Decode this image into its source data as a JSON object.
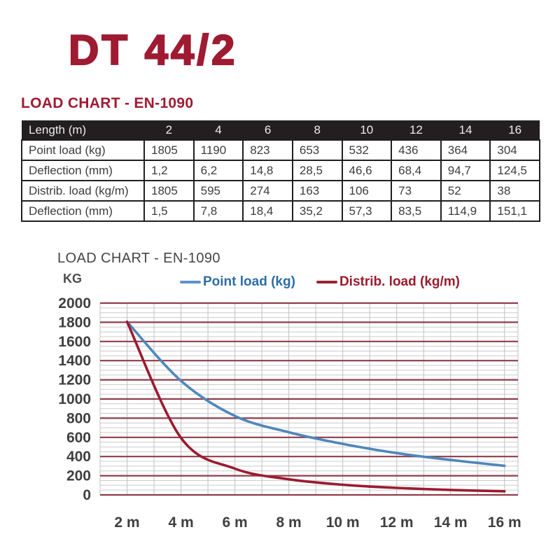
{
  "page": {
    "title": "DT 44/2",
    "section_heading": "LOAD CHART - EN-1090"
  },
  "table": {
    "header": {
      "label": "Length (m)",
      "values": [
        "2",
        "4",
        "6",
        "8",
        "10",
        "12",
        "14",
        "16"
      ]
    },
    "rows": [
      {
        "label": "Point load (kg)",
        "values": [
          "1805",
          "1190",
          "823",
          "653",
          "532",
          "436",
          "364",
          "304"
        ]
      },
      {
        "label": "Deflection (mm)",
        "values": [
          "1,2",
          "6,2",
          "14,8",
          "28,5",
          "46,6",
          "68,4",
          "94,7",
          "124,5"
        ]
      },
      {
        "label": "Distrib. load (kg/m)",
        "values": [
          "1805",
          "595",
          "274",
          "163",
          "106",
          "73",
          "52",
          "38"
        ]
      },
      {
        "label": "Deflection (mm)",
        "values": [
          "1,5",
          "7,8",
          "18,4",
          "35,2",
          "57,3",
          "83,5",
          "114,9",
          "151,1"
        ]
      }
    ]
  },
  "chart": {
    "heading": "LOAD CHART - EN-1090",
    "y_axis_label": "KG",
    "legend": [
      {
        "label": "Point load (kg)",
        "text_color": "#2E6DA4",
        "line_color": "#5B94CC"
      },
      {
        "label": "Distrib. load (kg/m)",
        "text_color": "#9B1B2D",
        "line_color": "#9B2335"
      }
    ]
  },
  "chart_data": {
    "type": "line",
    "title": "LOAD CHART - EN-1090",
    "ylabel": "KG",
    "xlabel": "",
    "x": [
      2,
      4,
      6,
      8,
      10,
      12,
      14,
      16
    ],
    "x_tick_labels": [
      "2 m",
      "4 m",
      "6 m",
      "8 m",
      "10 m",
      "12 m",
      "14 m",
      "16 m"
    ],
    "series": [
      {
        "name": "Point load (kg)",
        "color": "#4E87BB",
        "values": [
          1805,
          1190,
          823,
          653,
          532,
          436,
          364,
          304
        ]
      },
      {
        "name": "Distrib. load (kg/m)",
        "color": "#9B1B30",
        "values": [
          1805,
          595,
          274,
          163,
          106,
          73,
          52,
          38
        ]
      }
    ],
    "ylim": [
      0,
      2000
    ],
    "xlim": [
      1,
      16.5
    ],
    "y_ticks": [
      0,
      200,
      400,
      600,
      800,
      1000,
      1200,
      1400,
      1600,
      1800,
      2000
    ],
    "grid": {
      "major_step": 200,
      "minor_step": 50,
      "vertical_step": 1,
      "major_color": "#8F3D4A",
      "minor_color": "#CCCCCC",
      "vertical_color": "#C0C0C0"
    },
    "legend_position": "top"
  },
  "colors": {
    "brand_maroon": "#9E1B32",
    "table_header_bg": "#231F20",
    "body_text": "#3D3D3D",
    "tick_text": "#3F3F3F"
  }
}
